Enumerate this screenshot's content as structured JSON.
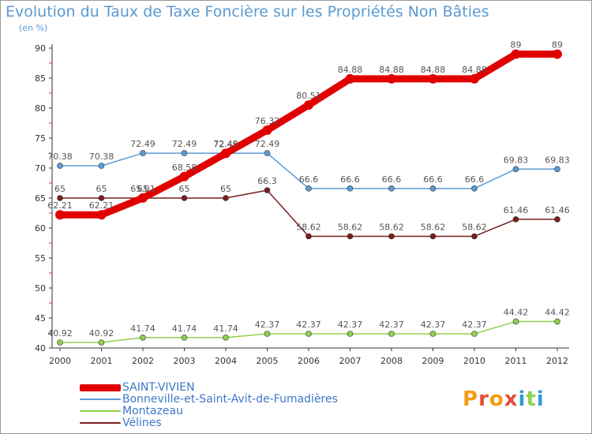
{
  "chart_data": {
    "type": "line",
    "title": "Evolution du Taux de Taxe Foncière sur les Propriétés Non Bâties",
    "ylabel": "(en %)",
    "xlabel": "",
    "categories": [
      "2000",
      "2001",
      "2002",
      "2003",
      "2004",
      "2005",
      "2006",
      "2007",
      "2008",
      "2009",
      "2010",
      "2011",
      "2012"
    ],
    "ylim": [
      40,
      90
    ],
    "yticks": [
      40,
      45,
      50,
      55,
      60,
      65,
      70,
      75,
      80,
      85,
      90
    ],
    "grid": false,
    "legend_position": "bottom-left",
    "series": [
      {
        "name": "SAINT-VIVIEN",
        "color": "#e00000",
        "values": [
          62.21,
          62.21,
          65.01,
          68.58,
          72.45,
          76.32,
          80.51,
          84.88,
          84.88,
          84.88,
          84.88,
          89,
          89
        ],
        "labels": [
          "62.21",
          "62.21",
          "65.01",
          "68.58",
          "72.45",
          "76.32",
          "80.51",
          "84.88",
          "84.88",
          "84.88",
          "84.88",
          "89",
          "89"
        ]
      },
      {
        "name": "Bonneville-et-Saint-Avit-de-Fumadières",
        "color": "#5b9bd5",
        "values": [
          70.38,
          70.38,
          72.49,
          72.49,
          72.49,
          72.49,
          66.6,
          66.6,
          66.6,
          66.6,
          66.6,
          69.83,
          69.83
        ],
        "labels": [
          "70.38",
          "70.38",
          "72.49",
          "72.49",
          "72.49",
          "72.49",
          "66.6",
          "66.6",
          "66.6",
          "66.6",
          "66.6",
          "69.83",
          "69.83"
        ]
      },
      {
        "name": "Montazeau",
        "color": "#8fd14f",
        "values": [
          40.92,
          40.92,
          41.74,
          41.74,
          41.74,
          42.37,
          42.37,
          42.37,
          42.37,
          42.37,
          42.37,
          44.42,
          44.42
        ],
        "labels": [
          "40.92",
          "40.92",
          "41.74",
          "41.74",
          "41.74",
          "42.37",
          "42.37",
          "42.37",
          "42.37",
          "42.37",
          "42.37",
          "44.42",
          "44.42"
        ]
      },
      {
        "name": "Vélines",
        "color": "#7a1e1e",
        "values": [
          65,
          65,
          65,
          65,
          65,
          66.3,
          58.62,
          58.62,
          58.62,
          58.62,
          58.62,
          61.46,
          61.46
        ],
        "labels": [
          "65",
          "65",
          "65",
          "65",
          "65",
          "66.3",
          "58.62",
          "58.62",
          "58.62",
          "58.62",
          "58.62",
          "61.46",
          "61.46"
        ]
      }
    ]
  },
  "logo": {
    "text": "Proxiti",
    "colors": [
      "#f39c12",
      "#e74c3c",
      "#f39c12",
      "#e74c3c",
      "#3498db",
      "#8fd14f",
      "#3498db"
    ]
  }
}
